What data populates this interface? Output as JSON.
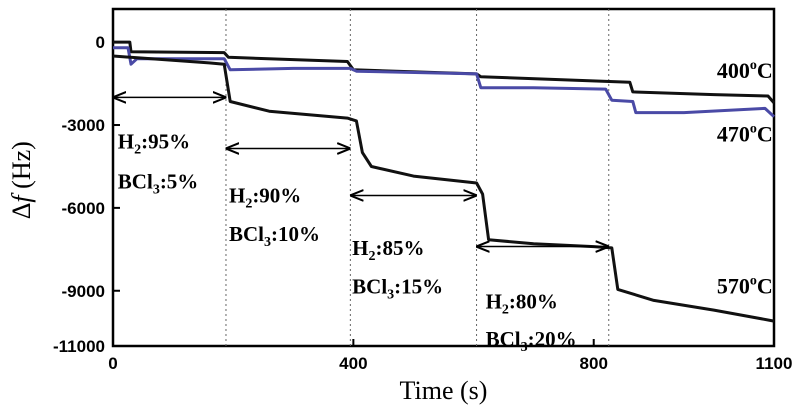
{
  "chart_data": {
    "type": "line",
    "xlabel": "Time (s)",
    "ylabel_symbol": "Δ",
    "ylabel_var": "f",
    "ylabel_unit": " (Hz)",
    "xlim": [
      0,
      1100
    ],
    "ylim": [
      -11000,
      1200
    ],
    "xticks": [
      {
        "value": 0,
        "label": "0"
      },
      {
        "value": 400,
        "label": "400"
      },
      {
        "value": 800,
        "label": "800"
      },
      {
        "value": 1100,
        "label": "1100"
      }
    ],
    "yticks": [
      {
        "value": 0,
        "label": "0"
      },
      {
        "value": -3000,
        "label": "-3000"
      },
      {
        "value": -6000,
        "label": "-6000"
      },
      {
        "value": -9000,
        "label": "-9000"
      },
      {
        "value": -11000,
        "label": "-11000"
      }
    ],
    "switch_times": [
      188,
      395,
      605,
      825
    ],
    "series": [
      {
        "name": "400",
        "color": "#111111",
        "points": [
          [
            0,
            0
          ],
          [
            28,
            0
          ],
          [
            30,
            -350
          ],
          [
            185,
            -380
          ],
          [
            192,
            -550
          ],
          [
            390,
            -700
          ],
          [
            400,
            -1000
          ],
          [
            605,
            -1150
          ],
          [
            612,
            -1250
          ],
          [
            860,
            -1450
          ],
          [
            865,
            -1800
          ],
          [
            1000,
            -1900
          ],
          [
            1090,
            -1950
          ],
          [
            1100,
            -2200
          ]
        ]
      },
      {
        "name": "470",
        "color": "#4a4aa6",
        "points": [
          [
            0,
            -200
          ],
          [
            25,
            -200
          ],
          [
            30,
            -800
          ],
          [
            40,
            -600
          ],
          [
            185,
            -600
          ],
          [
            195,
            -1000
          ],
          [
            300,
            -950
          ],
          [
            395,
            -950
          ],
          [
            405,
            -1050
          ],
          [
            605,
            -1150
          ],
          [
            612,
            -1650
          ],
          [
            700,
            -1650
          ],
          [
            820,
            -1700
          ],
          [
            830,
            -2100
          ],
          [
            865,
            -2150
          ],
          [
            870,
            -2550
          ],
          [
            950,
            -2550
          ],
          [
            1085,
            -2400
          ],
          [
            1100,
            -2700
          ]
        ]
      },
      {
        "name": "570",
        "color": "#111111",
        "points": [
          [
            0,
            -500
          ],
          [
            160,
            -750
          ],
          [
            185,
            -800
          ],
          [
            195,
            -2150
          ],
          [
            260,
            -2500
          ],
          [
            390,
            -2750
          ],
          [
            405,
            -2850
          ],
          [
            415,
            -4000
          ],
          [
            430,
            -4500
          ],
          [
            500,
            -4850
          ],
          [
            605,
            -5100
          ],
          [
            615,
            -5500
          ],
          [
            625,
            -7150
          ],
          [
            700,
            -7300
          ],
          [
            800,
            -7400
          ],
          [
            830,
            -7450
          ],
          [
            840,
            -8950
          ],
          [
            900,
            -9350
          ],
          [
            1000,
            -9700
          ],
          [
            1100,
            -10100
          ]
        ]
      }
    ],
    "series_labels": [
      {
        "base": "400",
        "sup": "o",
        "unit": "C",
        "x": 1005,
        "y": -1300
      },
      {
        "base": "470",
        "sup": "o",
        "unit": "C",
        "x": 1005,
        "y": -3600
      },
      {
        "base": "570",
        "sup": "o",
        "unit": "C",
        "x": 1005,
        "y": -9100
      }
    ],
    "intervals": [
      {
        "from": 0,
        "to": 188,
        "arrow_y": -2000,
        "h2": "95%",
        "bcl3": "5%",
        "tx": 8,
        "ty1": -3850,
        "ty2": -5300
      },
      {
        "from": 188,
        "to": 395,
        "arrow_y": -3850,
        "h2": "90%",
        "bcl3": "10%",
        "tx": 193,
        "ty1": -5800,
        "ty2": -7200
      },
      {
        "from": 395,
        "to": 605,
        "arrow_y": -5550,
        "h2": "85%",
        "bcl3": "15%",
        "tx": 398,
        "ty1": -7700,
        "ty2": -9100
      },
      {
        "from": 605,
        "to": 825,
        "arrow_y": -7400,
        "h2": "80%",
        "bcl3": "20%",
        "tx": 620,
        "ty1": -9650,
        "ty2": -11000
      }
    ]
  }
}
